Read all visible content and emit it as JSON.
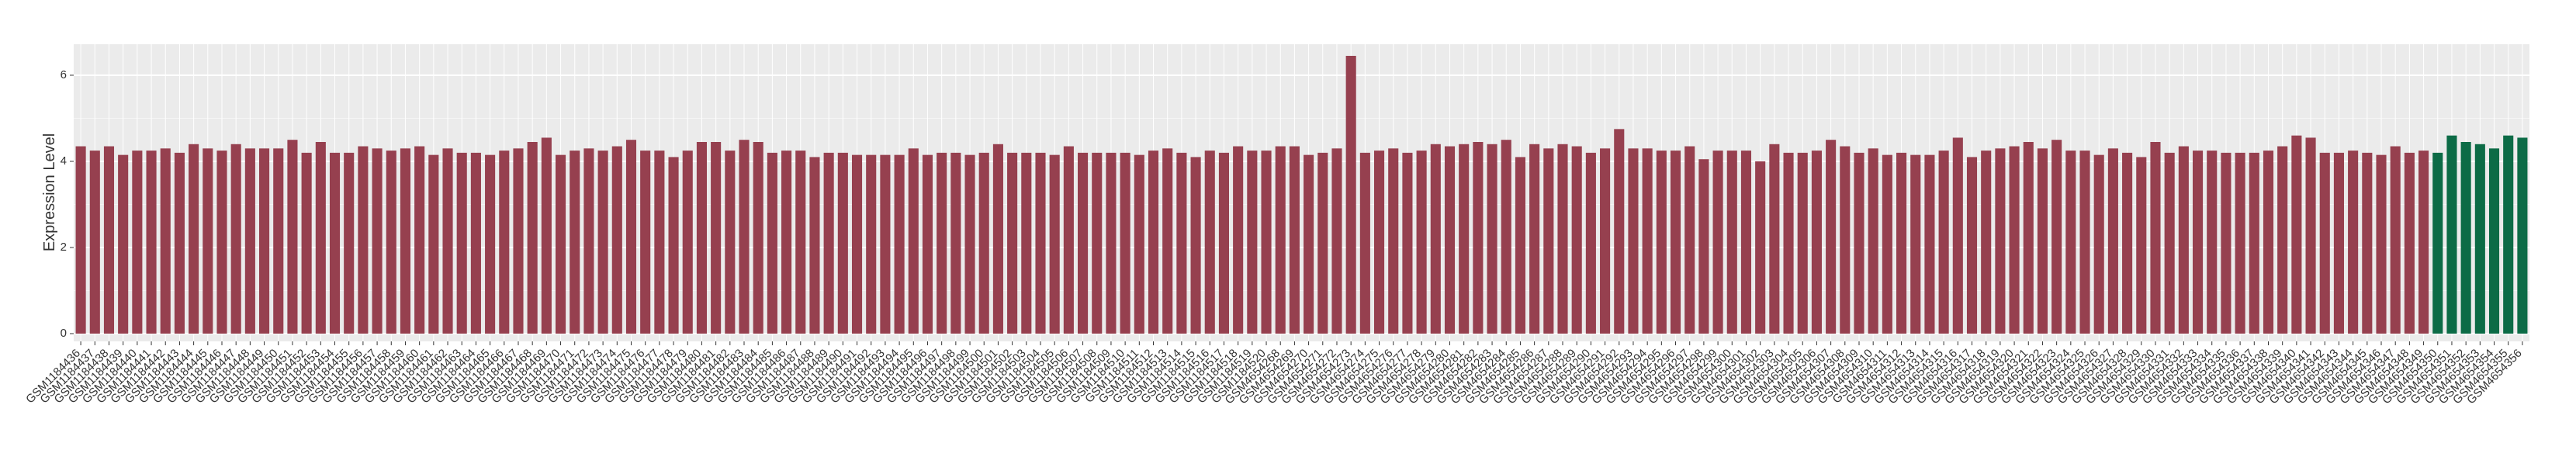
{
  "chart_data": {
    "type": "bar",
    "y_label": "Expression Level",
    "categories": [
      "GSM1184436",
      "GSM1184437",
      "GSM1184438",
      "GSM1184439",
      "GSM1184440",
      "GSM1184441",
      "GSM1184442",
      "GSM1184443",
      "GSM1184444",
      "GSM1184445",
      "GSM1184446",
      "GSM1184447",
      "GSM1184448",
      "GSM1184449",
      "GSM1184450",
      "GSM1184451",
      "GSM1184452",
      "GSM1184453",
      "GSM1184454",
      "GSM1184455",
      "GSM1184456",
      "GSM1184457",
      "GSM1184458",
      "GSM1184459",
      "GSM1184460",
      "GSM1184461",
      "GSM1184462",
      "GSM1184463",
      "GSM1184464",
      "GSM1184465",
      "GSM1184466",
      "GSM1184467",
      "GSM1184468",
      "GSM1184469",
      "GSM1184470",
      "GSM1184471",
      "GSM1184472",
      "GSM1184473",
      "GSM1184474",
      "GSM1184475",
      "GSM1184476",
      "GSM1184477",
      "GSM1184478",
      "GSM1184479",
      "GSM1184480",
      "GSM1184481",
      "GSM1184482",
      "GSM1184483",
      "GSM1184484",
      "GSM1184485",
      "GSM1184486",
      "GSM1184487",
      "GSM1184488",
      "GSM1184489",
      "GSM1184490",
      "GSM1184491",
      "GSM1184492",
      "GSM1184493",
      "GSM1184494",
      "GSM1184495",
      "GSM1184496",
      "GSM1184497",
      "GSM1184498",
      "GSM1184499",
      "GSM1184500",
      "GSM1184501",
      "GSM1184502",
      "GSM1184503",
      "GSM1184504",
      "GSM1184505",
      "GSM1184506",
      "GSM1184507",
      "GSM1184508",
      "GSM1184509",
      "GSM1184510",
      "GSM1184511",
      "GSM1184512",
      "GSM1184513",
      "GSM1184514",
      "GSM1184515",
      "GSM1184516",
      "GSM1184517",
      "GSM1184518",
      "GSM1184519",
      "GSM1184520",
      "GSM4654268",
      "GSM4654269",
      "GSM4654270",
      "GSM4654271",
      "GSM4654272",
      "GSM4654273",
      "GSM4654274",
      "GSM4654275",
      "GSM4654276",
      "GSM4654277",
      "GSM4654278",
      "GSM4654279",
      "GSM4654280",
      "GSM4654281",
      "GSM4654282",
      "GSM4654283",
      "GSM4654284",
      "GSM4654285",
      "GSM4654286",
      "GSM4654287",
      "GSM4654288",
      "GSM4654289",
      "GSM4654290",
      "GSM4654291",
      "GSM4654292",
      "GSM4654293",
      "GSM4654294",
      "GSM4654295",
      "GSM4654296",
      "GSM4654297",
      "GSM4654298",
      "GSM4654299",
      "GSM4654300",
      "GSM4654301",
      "GSM4654302",
      "GSM4654303",
      "GSM4654304",
      "GSM4654305",
      "GSM4654306",
      "GSM4654307",
      "GSM4654308",
      "GSM4654309",
      "GSM4654310",
      "GSM4654311",
      "GSM4654312",
      "GSM4654313",
      "GSM4654314",
      "GSM4654315",
      "GSM4654316",
      "GSM4654317",
      "GSM4654318",
      "GSM4654319",
      "GSM4654320",
      "GSM4654321",
      "GSM4654322",
      "GSM4654323",
      "GSM4654324",
      "GSM4654325",
      "GSM4654326",
      "GSM4654327",
      "GSM4654328",
      "GSM4654329",
      "GSM4654330",
      "GSM4654331",
      "GSM4654332",
      "GSM4654333",
      "GSM4654334",
      "GSM4654335",
      "GSM4654336",
      "GSM4654337",
      "GSM4654338",
      "GSM4654339",
      "GSM4654340",
      "GSM4654341",
      "GSM4654342",
      "GSM4654343",
      "GSM4654344",
      "GSM4654345",
      "GSM4654346",
      "GSM4654347",
      "GSM4654348",
      "GSM4654349",
      "GSM4654350",
      "GSM4654351",
      "GSM4654352",
      "GSM4654353",
      "GSM4654354",
      "GSM4654355",
      "GSM4654356"
    ],
    "series": [
      {
        "color": "#96404f",
        "values": [
          4.35,
          4.25,
          4.35,
          4.15,
          4.25,
          4.25,
          4.3,
          4.2,
          4.4,
          4.3,
          4.25,
          4.4,
          4.3,
          4.3,
          4.3,
          4.5,
          4.2,
          4.45,
          4.2,
          4.2,
          4.35,
          4.3,
          4.25,
          4.3,
          4.35,
          4.15,
          4.3,
          4.2,
          4.2,
          4.15,
          4.25,
          4.3,
          4.45,
          4.55,
          4.15,
          4.25,
          4.3,
          4.25,
          4.35,
          4.5,
          4.25,
          4.25,
          4.1,
          4.25,
          4.45,
          4.45,
          4.25,
          4.5,
          4.45,
          4.2,
          4.25,
          4.25,
          4.1,
          4.2,
          4.2,
          4.15,
          4.15,
          4.15,
          4.15,
          4.3,
          4.15,
          4.2,
          4.2,
          4.15,
          4.2,
          4.4,
          4.2,
          4.2,
          4.2,
          4.15,
          4.35,
          4.2,
          4.2,
          4.2,
          4.2,
          4.15,
          4.25,
          4.3,
          4.2,
          4.1,
          4.25,
          4.2,
          4.35,
          4.25,
          4.25,
          4.35,
          4.35,
          4.15,
          4.2,
          4.3,
          6.45,
          4.2,
          4.25,
          4.3,
          4.2,
          4.25,
          4.4,
          4.35,
          4.4,
          4.45,
          4.4,
          4.5,
          4.1,
          4.4,
          4.3,
          4.4,
          4.35,
          4.2,
          4.3,
          4.75,
          4.3,
          4.3,
          4.25,
          4.25,
          4.35,
          4.05,
          4.25,
          4.25,
          4.25,
          4.0,
          4.4,
          4.2,
          4.2,
          4.25,
          4.5,
          4.35,
          4.2,
          4.3,
          4.15,
          4.2,
          4.15,
          4.15,
          4.25,
          4.55,
          4.1,
          4.25,
          4.3,
          4.35,
          4.45,
          4.3,
          4.5,
          4.25,
          4.25,
          4.15,
          4.3,
          4.2,
          4.1,
          4.45,
          4.2,
          4.35,
          4.25,
          4.25,
          4.2,
          4.2,
          4.2,
          4.25,
          4.35,
          4.6,
          4.55,
          4.2,
          4.2,
          4.25,
          4.2,
          4.15,
          4.35,
          4.2,
          4.25,
          null,
          null,
          null,
          null,
          null,
          null,
          null
        ]
      },
      {
        "color": "#0c6b46",
        "values": [
          null,
          null,
          null,
          null,
          null,
          null,
          null,
          null,
          null,
          null,
          null,
          null,
          null,
          null,
          null,
          null,
          null,
          null,
          null,
          null,
          null,
          null,
          null,
          null,
          null,
          null,
          null,
          null,
          null,
          null,
          null,
          null,
          null,
          null,
          null,
          null,
          null,
          null,
          null,
          null,
          null,
          null,
          null,
          null,
          null,
          null,
          null,
          null,
          null,
          null,
          null,
          null,
          null,
          null,
          null,
          null,
          null,
          null,
          null,
          null,
          null,
          null,
          null,
          null,
          null,
          null,
          null,
          null,
          null,
          null,
          null,
          null,
          null,
          null,
          null,
          null,
          null,
          null,
          null,
          null,
          null,
          null,
          null,
          null,
          null,
          null,
          null,
          null,
          null,
          null,
          null,
          null,
          null,
          null,
          null,
          null,
          null,
          null,
          null,
          null,
          null,
          null,
          null,
          null,
          null,
          null,
          null,
          null,
          null,
          null,
          null,
          null,
          null,
          null,
          null,
          null,
          null,
          null,
          null,
          null,
          null,
          null,
          null,
          null,
          null,
          null,
          null,
          null,
          null,
          null,
          null,
          null,
          null,
          null,
          null,
          null,
          null,
          null,
          null,
          null,
          null,
          null,
          null,
          null,
          null,
          null,
          null,
          null,
          null,
          null,
          null,
          null,
          null,
          null,
          null,
          null,
          null,
          null,
          null,
          null,
          null,
          null,
          null,
          null,
          null,
          null,
          null,
          4.2,
          4.6,
          4.45,
          4.4,
          4.3,
          4.6,
          4.55
        ]
      }
    ],
    "ylim": [
      -0.18,
      6.72
    ],
    "yticks": [
      0,
      2,
      4,
      6
    ],
    "grid": true
  }
}
